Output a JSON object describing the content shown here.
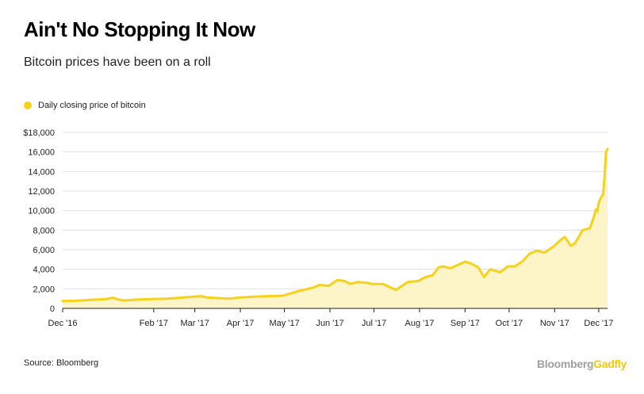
{
  "header": {
    "title": "Ain't No Stopping It Now",
    "subtitle": "Bitcoin prices have been on a roll"
  },
  "legend": {
    "label": "Daily closing price of bitcoin"
  },
  "footer": {
    "source": "Source: Bloomberg",
    "brand_part1": "Bloomberg",
    "brand_part2": "Gadfly"
  },
  "colors": {
    "line": "#f7d11a",
    "area": "#fdf4c8",
    "grid": "#e0e0e0",
    "brand_gray": "#a0a0a0",
    "brand_yellow": "#f5c800"
  },
  "chart_data": {
    "type": "area",
    "title": "Ain't No Stopping It Now",
    "subtitle": "Bitcoin prices have been on a roll",
    "xlabel": "",
    "ylabel": "",
    "ylim": [
      0,
      18000
    ],
    "yticks": [
      0,
      2000,
      4000,
      6000,
      8000,
      10000,
      12000,
      14000,
      16000,
      18000
    ],
    "ytick_labels": [
      "0",
      "2,000",
      "4,000",
      "6,000",
      "8,000",
      "10,000",
      "12,000",
      "14,000",
      "16,000",
      "$18,000"
    ],
    "xlim": [
      "2016-12-01",
      "2017-12-07"
    ],
    "xticks": [
      "2016-12-01",
      "2017-02-01",
      "2017-03-01",
      "2017-04-01",
      "2017-05-01",
      "2017-06-01",
      "2017-07-01",
      "2017-08-01",
      "2017-09-01",
      "2017-10-01",
      "2017-11-01",
      "2017-12-01"
    ],
    "xtick_labels": [
      "Dec '16",
      "Feb '17",
      "Mar '17",
      "Apr '17",
      "May '17",
      "Jun '17",
      "Jul '17",
      "Aug '17",
      "Sep '17",
      "Oct '17",
      "Nov '17",
      "Dec '17"
    ],
    "grid": true,
    "legend_position": "top-left",
    "series": [
      {
        "name": "Daily closing price of bitcoin",
        "x": [
          "2016-12-01",
          "2016-12-10",
          "2016-12-20",
          "2016-12-31",
          "2017-01-04",
          "2017-01-08",
          "2017-01-12",
          "2017-01-20",
          "2017-01-31",
          "2017-02-10",
          "2017-02-20",
          "2017-02-28",
          "2017-03-05",
          "2017-03-10",
          "2017-03-18",
          "2017-03-25",
          "2017-03-31",
          "2017-04-10",
          "2017-04-20",
          "2017-04-30",
          "2017-05-10",
          "2017-05-20",
          "2017-05-25",
          "2017-05-31",
          "2017-06-06",
          "2017-06-11",
          "2017-06-15",
          "2017-06-20",
          "2017-06-27",
          "2017-06-30",
          "2017-07-07",
          "2017-07-16",
          "2017-07-20",
          "2017-07-24",
          "2017-07-31",
          "2017-08-05",
          "2017-08-10",
          "2017-08-14",
          "2017-08-17",
          "2017-08-22",
          "2017-08-31",
          "2017-09-01",
          "2017-09-05",
          "2017-09-10",
          "2017-09-14",
          "2017-09-18",
          "2017-09-25",
          "2017-09-30",
          "2017-10-05",
          "2017-10-10",
          "2017-10-15",
          "2017-10-20",
          "2017-10-25",
          "2017-10-31",
          "2017-11-05",
          "2017-11-08",
          "2017-11-12",
          "2017-11-15",
          "2017-11-20",
          "2017-11-25",
          "2017-11-28",
          "2017-11-29",
          "2017-11-30",
          "2017-12-01",
          "2017-12-03",
          "2017-12-04",
          "2017-12-05",
          "2017-12-06",
          "2017-12-07"
        ],
        "values": [
          750,
          780,
          870,
          960,
          1100,
          900,
          800,
          900,
          950,
          1000,
          1100,
          1200,
          1250,
          1100,
          1050,
          1000,
          1100,
          1200,
          1250,
          1300,
          1750,
          2100,
          2400,
          2300,
          2900,
          2800,
          2500,
          2700,
          2600,
          2500,
          2500,
          1900,
          2300,
          2700,
          2800,
          3200,
          3400,
          4200,
          4300,
          4100,
          4700,
          4800,
          4600,
          4200,
          3200,
          4000,
          3700,
          4300,
          4300,
          4800,
          5600,
          5900,
          5700,
          6300,
          7000,
          7300,
          6400,
          6700,
          8000,
          8200,
          9500,
          10100,
          9900,
          10800,
          11500,
          11600,
          13500,
          16000,
          16300
        ]
      }
    ]
  }
}
